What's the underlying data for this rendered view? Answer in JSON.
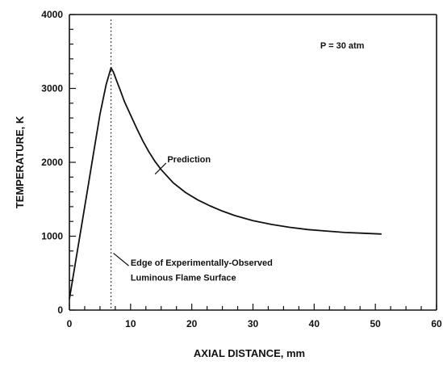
{
  "chart_data": {
    "type": "line",
    "title": "",
    "xlabel": "AXIAL DISTANCE, mm",
    "ylabel": "TEMPERATURE, K",
    "xlim": [
      0,
      60
    ],
    "ylim": [
      0,
      4000
    ],
    "xticks": [
      0,
      10,
      20,
      30,
      40,
      50,
      60
    ],
    "yticks": [
      0,
      1000,
      2000,
      3000,
      4000
    ],
    "grid": false,
    "series": [
      {
        "name": "Prediction",
        "color": "#111111",
        "x": [
          0,
          1,
          2,
          3,
          4,
          5,
          6,
          6.8,
          7.2,
          7.6,
          8.3,
          9,
          10,
          11,
          12,
          13,
          14,
          15,
          17,
          19,
          21,
          23,
          25,
          27,
          30,
          33,
          36,
          39,
          42,
          45,
          48,
          51
        ],
        "y": [
          150,
          650,
          1150,
          1650,
          2150,
          2650,
          3050,
          3280,
          3220,
          3130,
          2980,
          2820,
          2640,
          2460,
          2290,
          2140,
          2010,
          1900,
          1720,
          1590,
          1490,
          1410,
          1340,
          1280,
          1210,
          1160,
          1120,
          1090,
          1070,
          1050,
          1040,
          1030
        ]
      }
    ],
    "edge_marker_x": 6.8,
    "annotations": {
      "pressure": "P = 30 atm",
      "prediction": "Prediction",
      "edge_line1": "Edge of Experimentally-Observed",
      "edge_line2": "Luminous Flame Surface"
    }
  }
}
